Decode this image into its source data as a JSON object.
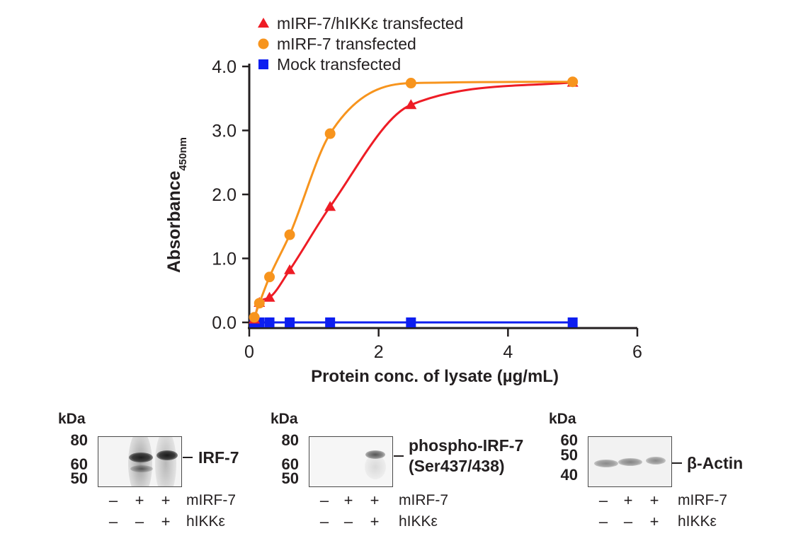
{
  "chart_data": {
    "type": "line",
    "title": "",
    "xlabel": "Protein conc. of lysate (µg/mL)",
    "ylabel": "Absorbance",
    "ylabel_subscript": "450nm",
    "xlim": [
      0,
      6
    ],
    "ylim": [
      0,
      4
    ],
    "xticks": [
      0,
      2,
      4,
      6
    ],
    "xtick_labels": [
      "0",
      "2",
      "4",
      "6"
    ],
    "yticks": [
      0,
      1,
      2,
      3,
      4
    ],
    "ytick_labels": [
      "0.0",
      "1.0",
      "2.0",
      "3.0",
      "4.0"
    ],
    "grid": false,
    "legend_position": "top-center",
    "x": [
      0.078,
      0.156,
      0.3125,
      0.625,
      1.25,
      2.5,
      5.0
    ],
    "series": [
      {
        "name": "mIRF-7/hIKKε transfected",
        "marker": "triangle",
        "color": "#ee1c25",
        "values": [
          0.05,
          0.31,
          0.39,
          0.82,
          1.81,
          3.4,
          3.75
        ]
      },
      {
        "name": "mIRF-7 transfected",
        "marker": "circle",
        "color": "#f7941d",
        "values": [
          0.08,
          0.3,
          0.71,
          1.37,
          2.95,
          3.74,
          3.76
        ]
      },
      {
        "name": "Mock transfected",
        "marker": "square",
        "color": "#0d1ef0",
        "values": [
          0.0,
          0.0,
          0.0,
          0.0,
          0.0,
          0.0,
          0.0
        ]
      }
    ]
  },
  "blots": [
    {
      "kda_label": "kDa",
      "markers": [
        "80",
        "60",
        "50"
      ],
      "target_label": "IRF-7",
      "target_label_line2": "",
      "rows": [
        {
          "label": "mIRF-7",
          "signs": [
            "–",
            "+",
            "+"
          ]
        },
        {
          "label": "hIKKε",
          "signs": [
            "–",
            "–",
            "+"
          ]
        }
      ]
    },
    {
      "kda_label": "kDa",
      "markers": [
        "80",
        "60",
        "50"
      ],
      "target_label": "phospho-IRF-7",
      "target_label_line2": "(Ser437/438)",
      "rows": [
        {
          "label": "mIRF-7",
          "signs": [
            "–",
            "+",
            "+"
          ]
        },
        {
          "label": "hIKKε",
          "signs": [
            "–",
            "–",
            "+"
          ]
        }
      ]
    },
    {
      "kda_label": "kDa",
      "markers": [
        "60",
        "50",
        "40"
      ],
      "target_label": "β-Actin",
      "target_label_line2": "",
      "rows": [
        {
          "label": "mIRF-7",
          "signs": [
            "–",
            "+",
            "+"
          ]
        },
        {
          "label": "hIKKε",
          "signs": [
            "–",
            "–",
            "+"
          ]
        }
      ]
    }
  ]
}
